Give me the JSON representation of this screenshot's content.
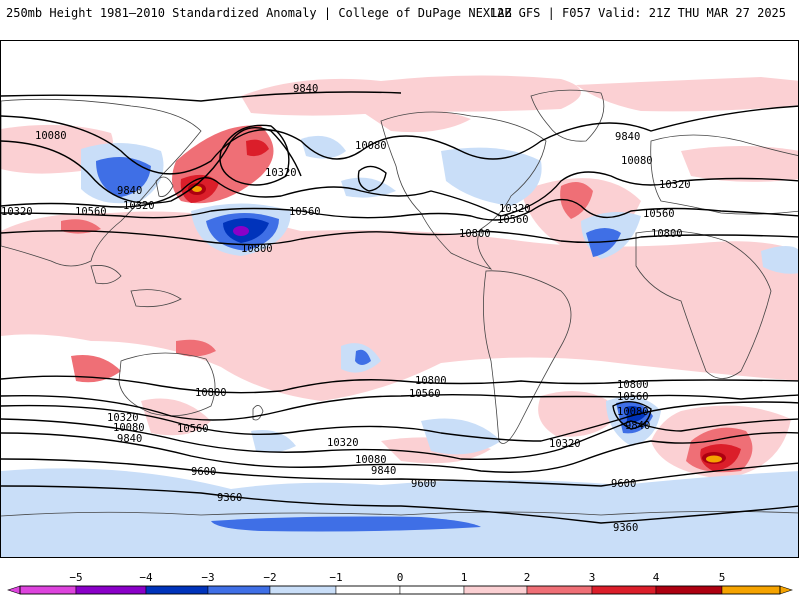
{
  "header": {
    "left": "250mb Height 1981–2010 Standardized Anomaly | College of DuPage NEXLAB",
    "right": "12Z GFS | F057 Valid: 21Z THU MAR 27 2025"
  },
  "colors": {
    "neg5": "#dd44dd",
    "neg4": "#8a00c8",
    "neg3": "#0033bb",
    "neg2": "#3f6fe6",
    "neg1": "#c9def8",
    "pos1": "#fbd0d3",
    "pos2": "#ef6f76",
    "pos3": "#db1e2a",
    "pos4": "#ad0010",
    "pos5": "#f5a300",
    "contour": "#000000",
    "coast": "#444444"
  },
  "colorbar": {
    "ticks": [
      "−5",
      "−4",
      "−3",
      "−2",
      "−1",
      "0",
      "1",
      "2",
      "3",
      "4",
      "5"
    ]
  },
  "contour_labels": [
    {
      "id": "c1",
      "text": "9840"
    },
    {
      "id": "c2",
      "text": "10080"
    },
    {
      "id": "c3",
      "text": "9840"
    },
    {
      "id": "c4",
      "text": "10320"
    },
    {
      "id": "c5",
      "text": "10320"
    },
    {
      "id": "c6",
      "text": "10560"
    },
    {
      "id": "c7",
      "text": "10320"
    },
    {
      "id": "c8",
      "text": "10560"
    },
    {
      "id": "c9",
      "text": "10800"
    },
    {
      "id": "c10",
      "text": "10080"
    },
    {
      "id": "c11",
      "text": "10320"
    },
    {
      "id": "c12",
      "text": "10560"
    },
    {
      "id": "c13",
      "text": "10800"
    },
    {
      "id": "c14",
      "text": "9840"
    },
    {
      "id": "c15",
      "text": "10080"
    },
    {
      "id": "c16",
      "text": "10320"
    },
    {
      "id": "c17",
      "text": "10560"
    },
    {
      "id": "c18",
      "text": "10800"
    },
    {
      "id": "c19",
      "text": "10800"
    },
    {
      "id": "c20",
      "text": "10320"
    },
    {
      "id": "c21",
      "text": "10080"
    },
    {
      "id": "c22",
      "text": "9840"
    },
    {
      "id": "c23",
      "text": "10560"
    },
    {
      "id": "c24",
      "text": "10800"
    },
    {
      "id": "c25",
      "text": "10560"
    },
    {
      "id": "c26",
      "text": "10320"
    },
    {
      "id": "c27",
      "text": "10080"
    },
    {
      "id": "c28",
      "text": "9840"
    },
    {
      "id": "c29",
      "text": "9600"
    },
    {
      "id": "c30",
      "text": "9600"
    },
    {
      "id": "c31",
      "text": "9600"
    },
    {
      "id": "c32",
      "text": "9360"
    },
    {
      "id": "c33",
      "text": "9360"
    },
    {
      "id": "c34",
      "text": "10800"
    },
    {
      "id": "c35",
      "text": "10560"
    },
    {
      "id": "c36",
      "text": "10080"
    },
    {
      "id": "c37",
      "text": "9840"
    },
    {
      "id": "c38",
      "text": "10320"
    }
  ]
}
